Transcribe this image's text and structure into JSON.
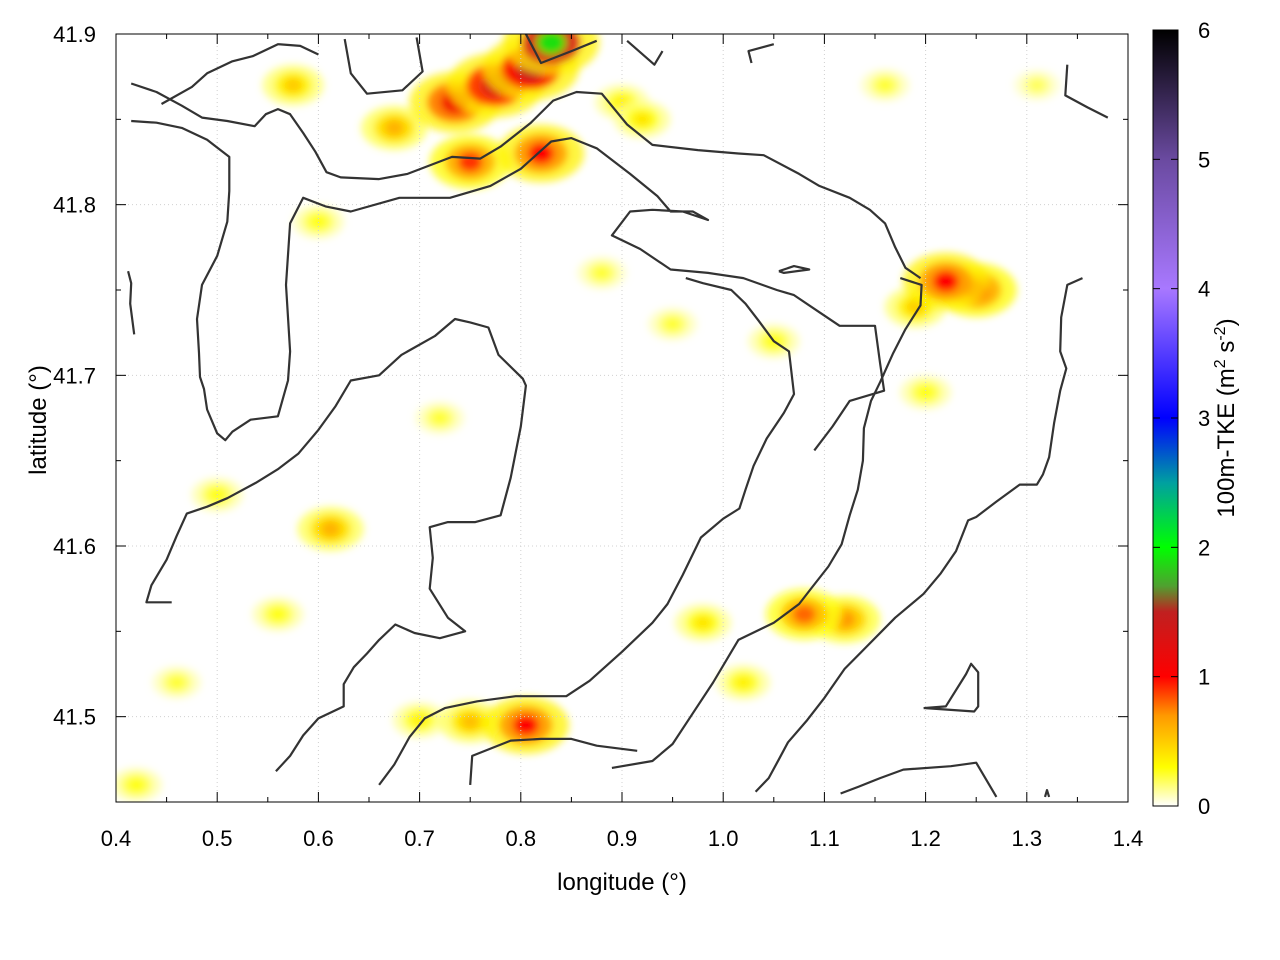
{
  "chart_data": {
    "type": "heatmap",
    "xlabel": "longitude (°)",
    "ylabel": "latitude (°)",
    "colorbar_label": "100m-TKE (m",
    "colorbar_unit_sup1": "2",
    "colorbar_unit_mid": " s",
    "colorbar_unit_sup2": "-2",
    "colorbar_unit_end": ")",
    "xlim": [
      0.4,
      1.4
    ],
    "ylim": [
      41.45,
      41.9
    ],
    "x_ticks": [
      "0.4",
      "0.5",
      "0.6",
      "0.7",
      "0.8",
      "0.9",
      "1.0",
      "1.1",
      "1.2",
      "1.3",
      "1.4"
    ],
    "y_ticks": [
      "41.5",
      "41.6",
      "41.7",
      "41.8",
      "41.9"
    ],
    "colorbar_range": [
      0,
      6
    ],
    "colorbar_ticks": [
      "0",
      "1",
      "2",
      "3",
      "4",
      "5",
      "6"
    ],
    "colormap": [
      {
        "v": 0.0,
        "color": "#ffffff"
      },
      {
        "v": 0.3,
        "color": "#ffff00"
      },
      {
        "v": 0.7,
        "color": "#ff9900"
      },
      {
        "v": 1.0,
        "color": "#ff0000"
      },
      {
        "v": 1.5,
        "color": "#c02020"
      },
      {
        "v": 1.7,
        "color": "#50a030"
      },
      {
        "v": 2.0,
        "color": "#00ff00"
      },
      {
        "v": 2.5,
        "color": "#00a0a0"
      },
      {
        "v": 3.0,
        "color": "#0000ff"
      },
      {
        "v": 4.0,
        "color": "#a878ff"
      },
      {
        "v": 5.0,
        "color": "#6a4aa0"
      },
      {
        "v": 6.0,
        "color": "#000000"
      }
    ],
    "grid": true,
    "hotspots": [
      {
        "lon": 0.775,
        "lat": 41.87,
        "value": 1.3
      },
      {
        "lon": 0.735,
        "lat": 41.86,
        "value": 1.1
      },
      {
        "lon": 0.81,
        "lat": 41.88,
        "value": 1.5
      },
      {
        "lon": 0.83,
        "lat": 41.895,
        "value": 1.9
      },
      {
        "lon": 0.82,
        "lat": 41.83,
        "value": 1.0
      },
      {
        "lon": 0.75,
        "lat": 41.825,
        "value": 0.9
      },
      {
        "lon": 0.675,
        "lat": 41.845,
        "value": 0.6
      },
      {
        "lon": 0.575,
        "lat": 41.87,
        "value": 0.5
      },
      {
        "lon": 1.22,
        "lat": 41.755,
        "value": 1.0
      },
      {
        "lon": 1.25,
        "lat": 41.75,
        "value": 0.9
      },
      {
        "lon": 1.19,
        "lat": 41.74,
        "value": 0.5
      },
      {
        "lon": 1.08,
        "lat": 41.56,
        "value": 0.8
      },
      {
        "lon": 1.12,
        "lat": 41.557,
        "value": 0.7
      },
      {
        "lon": 0.98,
        "lat": 41.555,
        "value": 0.4
      },
      {
        "lon": 1.02,
        "lat": 41.52,
        "value": 0.35
      },
      {
        "lon": 0.805,
        "lat": 41.495,
        "value": 1.0
      },
      {
        "lon": 0.75,
        "lat": 41.497,
        "value": 0.55
      },
      {
        "lon": 0.7,
        "lat": 41.498,
        "value": 0.35
      },
      {
        "lon": 0.612,
        "lat": 41.61,
        "value": 0.6
      },
      {
        "lon": 0.56,
        "lat": 41.56,
        "value": 0.3
      },
      {
        "lon": 0.5,
        "lat": 41.63,
        "value": 0.3
      },
      {
        "lon": 0.95,
        "lat": 41.73,
        "value": 0.25
      },
      {
        "lon": 1.05,
        "lat": 41.72,
        "value": 0.3
      },
      {
        "lon": 0.88,
        "lat": 41.76,
        "value": 0.25
      },
      {
        "lon": 0.9,
        "lat": 41.86,
        "value": 0.35
      },
      {
        "lon": 0.92,
        "lat": 41.85,
        "value": 0.4
      },
      {
        "lon": 0.6,
        "lat": 41.79,
        "value": 0.3
      },
      {
        "lon": 0.46,
        "lat": 41.52,
        "value": 0.25
      },
      {
        "lon": 1.2,
        "lat": 41.69,
        "value": 0.3
      },
      {
        "lon": 0.72,
        "lat": 41.675,
        "value": 0.25
      },
      {
        "lon": 1.16,
        "lat": 41.87,
        "value": 0.25
      },
      {
        "lon": 1.31,
        "lat": 41.87,
        "value": 0.2
      },
      {
        "lon": 0.42,
        "lat": 41.46,
        "value": 0.3
      }
    ],
    "contours": [
      [
        [
          0.415,
          41.871
        ],
        [
          0.44,
          41.866
        ],
        [
          0.465,
          41.858
        ],
        [
          0.485,
          41.851
        ],
        [
          0.51,
          41.849
        ],
        [
          0.537,
          41.846
        ],
        [
          0.548,
          41.853
        ],
        [
          0.56,
          41.856
        ],
        [
          0.572,
          41.853
        ],
        [
          0.585,
          41.842
        ],
        [
          0.597,
          41.831
        ],
        [
          0.608,
          41.819
        ],
        [
          0.622,
          41.816
        ],
        [
          0.66,
          41.815
        ],
        [
          0.688,
          41.818
        ],
        [
          0.732,
          41.828
        ],
        [
          0.76,
          41.827
        ],
        [
          0.78,
          41.834
        ],
        [
          0.81,
          41.848
        ],
        [
          0.832,
          41.861
        ],
        [
          0.855,
          41.866
        ],
        [
          0.88,
          41.865
        ],
        [
          0.905,
          41.847
        ],
        [
          0.93,
          41.835
        ],
        [
          0.975,
          41.832
        ],
        [
          1.015,
          41.83
        ],
        [
          1.04,
          41.829
        ],
        [
          1.075,
          41.818
        ],
        [
          1.095,
          41.811
        ],
        [
          1.125,
          41.804
        ],
        [
          1.145,
          41.797
        ],
        [
          1.16,
          41.789
        ],
        [
          1.17,
          41.775
        ],
        [
          1.18,
          41.763
        ],
        [
          1.195,
          41.757
        ]
      ],
      [
        [
          0.415,
          41.849
        ],
        [
          0.44,
          41.848
        ],
        [
          0.465,
          41.845
        ],
        [
          0.49,
          41.838
        ],
        [
          0.512,
          41.828
        ],
        [
          0.512,
          41.808
        ],
        [
          0.51,
          41.79
        ],
        [
          0.5,
          41.77
        ],
        [
          0.485,
          41.753
        ],
        [
          0.48,
          41.733
        ],
        [
          0.482,
          41.713
        ],
        [
          0.483,
          41.699
        ],
        [
          0.487,
          41.692
        ],
        [
          0.49,
          41.68
        ],
        [
          0.5,
          41.666
        ],
        [
          0.508,
          41.662
        ],
        [
          0.515,
          41.667
        ],
        [
          0.533,
          41.674
        ],
        [
          0.56,
          41.676
        ],
        [
          0.57,
          41.697
        ],
        [
          0.572,
          41.714
        ],
        [
          0.568,
          41.753
        ],
        [
          0.572,
          41.789
        ],
        [
          0.585,
          41.804
        ],
        [
          0.607,
          41.799
        ],
        [
          0.632,
          41.796
        ],
        [
          0.68,
          41.804
        ],
        [
          0.73,
          41.804
        ],
        [
          0.77,
          41.811
        ],
        [
          0.8,
          41.821
        ],
        [
          0.83,
          41.837
        ],
        [
          0.85,
          41.839
        ],
        [
          0.875,
          41.833
        ],
        [
          0.908,
          41.818
        ],
        [
          0.935,
          41.805
        ],
        [
          0.948,
          41.796
        ],
        [
          0.97,
          41.796
        ],
        [
          0.985,
          41.791
        ],
        [
          0.96,
          41.796
        ],
        [
          0.93,
          41.797
        ],
        [
          0.908,
          41.796
        ],
        [
          0.89,
          41.782
        ],
        [
          0.918,
          41.774
        ],
        [
          0.948,
          41.762
        ],
        [
          0.985,
          41.76
        ],
        [
          1.02,
          41.757
        ],
        [
          1.053,
          41.75
        ],
        [
          1.07,
          41.747
        ],
        [
          1.095,
          41.737
        ],
        [
          1.115,
          41.729
        ],
        [
          1.15,
          41.729
        ],
        [
          1.155,
          41.707
        ],
        [
          1.159,
          41.691
        ],
        [
          1.125,
          41.685
        ],
        [
          1.108,
          41.67
        ],
        [
          1.09,
          41.656
        ]
      ],
      [
        [
          1.175,
          41.757
        ],
        [
          1.196,
          41.753
        ],
        [
          1.195,
          41.741
        ],
        [
          1.18,
          41.727
        ],
        [
          1.168,
          41.713
        ],
        [
          1.155,
          41.696
        ],
        [
          1.146,
          41.685
        ],
        [
          1.139,
          41.669
        ],
        [
          1.138,
          41.65
        ],
        [
          1.133,
          41.633
        ],
        [
          1.125,
          41.618
        ],
        [
          1.117,
          41.601
        ],
        [
          1.104,
          41.588
        ],
        [
          1.088,
          41.576
        ],
        [
          1.075,
          41.566
        ],
        [
          1.05,
          41.555
        ],
        [
          1.015,
          41.545
        ],
        [
          0.99,
          41.52
        ],
        [
          0.97,
          41.502
        ],
        [
          0.95,
          41.484
        ],
        [
          0.93,
          41.474
        ],
        [
          0.89,
          41.47
        ]
      ],
      [
        [
          1.355,
          41.757
        ],
        [
          1.34,
          41.753
        ],
        [
          1.334,
          41.734
        ],
        [
          1.333,
          41.714
        ],
        [
          1.339,
          41.704
        ],
        [
          1.333,
          41.691
        ],
        [
          1.327,
          41.672
        ],
        [
          1.322,
          41.652
        ],
        [
          1.316,
          41.642
        ],
        [
          1.31,
          41.636
        ],
        [
          1.293,
          41.636
        ],
        [
          1.27,
          41.626
        ],
        [
          1.25,
          41.617
        ],
        [
          1.242,
          41.615
        ],
        [
          1.23,
          41.597
        ],
        [
          1.215,
          41.584
        ],
        [
          1.198,
          41.572
        ],
        [
          1.17,
          41.558
        ],
        [
          1.14,
          41.54
        ],
        [
          1.12,
          41.528
        ],
        [
          1.1,
          41.511
        ],
        [
          1.083,
          41.498
        ],
        [
          1.064,
          41.485
        ],
        [
          1.055,
          41.475
        ],
        [
          1.045,
          41.464
        ],
        [
          1.032,
          41.456
        ]
      ],
      [
        [
          0.455,
          41.567
        ],
        [
          0.43,
          41.567
        ],
        [
          0.435,
          41.577
        ],
        [
          0.45,
          41.592
        ],
        [
          0.46,
          41.606
        ],
        [
          0.47,
          41.619
        ],
        [
          0.49,
          41.623
        ],
        [
          0.51,
          41.628
        ],
        [
          0.538,
          41.637
        ],
        [
          0.56,
          41.645
        ],
        [
          0.58,
          41.654
        ],
        [
          0.6,
          41.668
        ],
        [
          0.617,
          41.682
        ],
        [
          0.632,
          41.697
        ],
        [
          0.66,
          41.7
        ],
        [
          0.682,
          41.712
        ],
        [
          0.715,
          41.723
        ],
        [
          0.735,
          41.733
        ],
        [
          0.75,
          41.731
        ],
        [
          0.768,
          41.728
        ],
        [
          0.778,
          41.712
        ],
        [
          0.802,
          41.698
        ],
        [
          0.805,
          41.694
        ],
        [
          0.8,
          41.67
        ],
        [
          0.79,
          41.64
        ],
        [
          0.78,
          41.618
        ],
        [
          0.755,
          41.614
        ],
        [
          0.728,
          41.614
        ],
        [
          0.71,
          41.611
        ],
        [
          0.713,
          41.593
        ],
        [
          0.71,
          41.575
        ],
        [
          0.728,
          41.558
        ],
        [
          0.745,
          41.55
        ],
        [
          0.72,
          41.546
        ],
        [
          0.695,
          41.549
        ],
        [
          0.676,
          41.554
        ],
        [
          0.66,
          41.545
        ],
        [
          0.648,
          41.537
        ],
        [
          0.635,
          41.529
        ],
        [
          0.625,
          41.519
        ],
        [
          0.625,
          41.506
        ],
        [
          0.6,
          41.499
        ],
        [
          0.585,
          41.489
        ],
        [
          0.572,
          41.477
        ],
        [
          0.558,
          41.468
        ]
      ],
      [
        [
          0.66,
          41.46
        ],
        [
          0.675,
          41.472
        ],
        [
          0.69,
          41.488
        ],
        [
          0.705,
          41.499
        ],
        [
          0.725,
          41.505
        ],
        [
          0.757,
          41.509
        ],
        [
          0.795,
          41.512
        ],
        [
          0.845,
          41.512
        ],
        [
          0.868,
          41.521
        ],
        [
          0.9,
          41.538
        ],
        [
          0.93,
          41.555
        ],
        [
          0.945,
          41.566
        ],
        [
          0.96,
          41.583
        ],
        [
          0.978,
          41.605
        ],
        [
          1.0,
          41.616
        ],
        [
          1.016,
          41.622
        ],
        [
          1.022,
          41.633
        ],
        [
          1.03,
          41.647
        ],
        [
          1.043,
          41.663
        ],
        [
          1.06,
          41.678
        ],
        [
          1.07,
          41.689
        ],
        [
          1.065,
          41.714
        ],
        [
          1.05,
          41.72
        ],
        [
          1.035,
          41.732
        ],
        [
          1.022,
          41.742
        ],
        [
          1.008,
          41.75
        ],
        [
          0.98,
          41.754
        ],
        [
          0.963,
          41.757
        ]
      ],
      [
        [
          0.75,
          41.46
        ],
        [
          0.752,
          41.477
        ],
        [
          0.79,
          41.486
        ],
        [
          0.82,
          41.487
        ],
        [
          0.85,
          41.487
        ],
        [
          0.875,
          41.483
        ],
        [
          0.915,
          41.48
        ]
      ],
      [
        [
          0.445,
          41.859
        ],
        [
          0.475,
          41.869
        ],
        [
          0.49,
          41.877
        ],
        [
          0.515,
          41.884
        ],
        [
          0.535,
          41.887
        ],
        [
          0.56,
          41.894
        ],
        [
          0.582,
          41.893
        ],
        [
          0.6,
          41.888
        ]
      ],
      [
        [
          0.626,
          41.897
        ],
        [
          0.632,
          41.877
        ],
        [
          0.648,
          41.865
        ],
        [
          0.683,
          41.867
        ],
        [
          0.703,
          41.878
        ],
        [
          0.697,
          41.898
        ]
      ],
      [
        [
          0.805,
          41.9
        ],
        [
          0.82,
          41.883
        ],
        [
          0.85,
          41.89
        ],
        [
          0.875,
          41.896
        ]
      ],
      [
        [
          0.905,
          41.896
        ],
        [
          0.932,
          41.882
        ],
        [
          0.94,
          41.89
        ]
      ],
      [
        [
          1.028,
          41.883
        ],
        [
          1.025,
          41.89
        ],
        [
          1.05,
          41.894
        ]
      ],
      [
        [
          1.34,
          41.882
        ],
        [
          1.338,
          41.864
        ],
        [
          1.36,
          41.857
        ],
        [
          1.38,
          41.851
        ]
      ],
      [
        [
          0.418,
          41.724
        ],
        [
          0.414,
          41.742
        ],
        [
          0.415,
          41.754
        ],
        [
          0.412,
          41.761
        ]
      ],
      [
        [
          1.055,
          41.761
        ],
        [
          1.07,
          41.764
        ],
        [
          1.085,
          41.762
        ],
        [
          1.06,
          41.76
        ],
        [
          1.055,
          41.761
        ]
      ],
      [
        [
          1.198,
          41.505
        ],
        [
          1.22,
          41.506
        ],
        [
          1.24,
          41.525
        ],
        [
          1.245,
          41.531
        ],
        [
          1.252,
          41.526
        ],
        [
          1.252,
          41.506
        ],
        [
          1.248,
          41.503
        ],
        [
          1.2,
          41.505
        ]
      ],
      [
        [
          1.116,
          41.455
        ],
        [
          1.134,
          41.459
        ],
        [
          1.155,
          41.464
        ],
        [
          1.178,
          41.469
        ],
        [
          1.225,
          41.471
        ],
        [
          1.25,
          41.473
        ],
        [
          1.27,
          41.453
        ]
      ],
      [
        [
          1.322,
          41.453
        ],
        [
          1.32,
          41.457
        ],
        [
          1.318,
          41.453
        ]
      ]
    ]
  }
}
